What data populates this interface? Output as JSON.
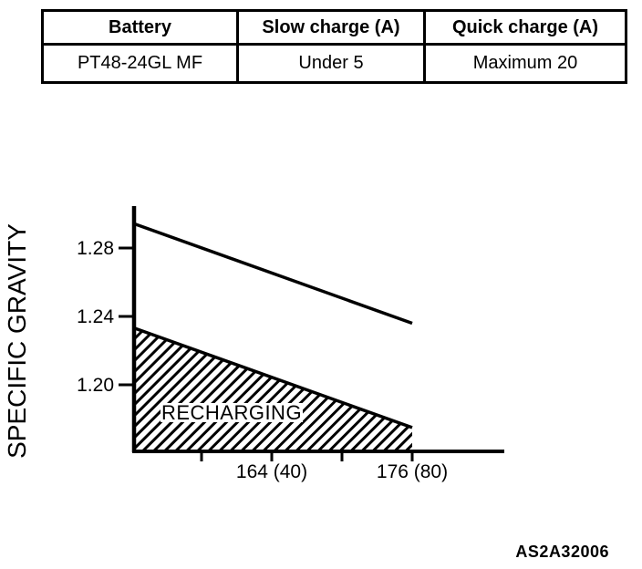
{
  "colors": {
    "ink": "#000000",
    "background": "#ffffff"
  },
  "table": {
    "headers": [
      "Battery",
      "Slow charge (A)",
      "Quick charge (A)"
    ],
    "rows": [
      [
        "PT48-24GL MF",
        "Under 5",
        "Maximum 20"
      ]
    ]
  },
  "chart_data": {
    "type": "line",
    "title": "",
    "xlabel": "",
    "ylabel": "SPECIFIC GRAVITY",
    "grid": false,
    "legend": "none",
    "y_axis": {
      "range": [
        1.161,
        1.305
      ],
      "ticks": [
        {
          "value": 1.28,
          "label": "1.28"
        },
        {
          "value": 1.24,
          "label": "1.24"
        },
        {
          "value": 1.2,
          "label": "1.20"
        }
      ]
    },
    "x_axis": {
      "range": [
        152.3,
        183.8
      ],
      "ticks": [
        {
          "value": 158,
          "label": ""
        },
        {
          "value": 164,
          "label": "164 (40)"
        },
        {
          "value": 170,
          "label": ""
        },
        {
          "value": 176,
          "label": "176 (80)"
        }
      ]
    },
    "series": [
      {
        "name": "fully-charged-line",
        "points": [
          {
            "x": 152.32,
            "y": 1.294
          },
          {
            "x": 176.0,
            "y": 1.236
          }
        ]
      },
      {
        "name": "recharging-limit-line",
        "points": [
          {
            "x": 152.32,
            "y": 1.233
          },
          {
            "x": 176.0,
            "y": 1.175
          }
        ]
      }
    ],
    "region": {
      "label": "RECHARGING",
      "fill": "hatched",
      "points": [
        [
          152.32,
          1.233
        ],
        [
          176.0,
          1.175
        ],
        [
          176.0,
          1.1614
        ],
        [
          152.32,
          1.1614
        ]
      ]
    }
  },
  "footer": {
    "figure_code": "AS2A32006"
  }
}
